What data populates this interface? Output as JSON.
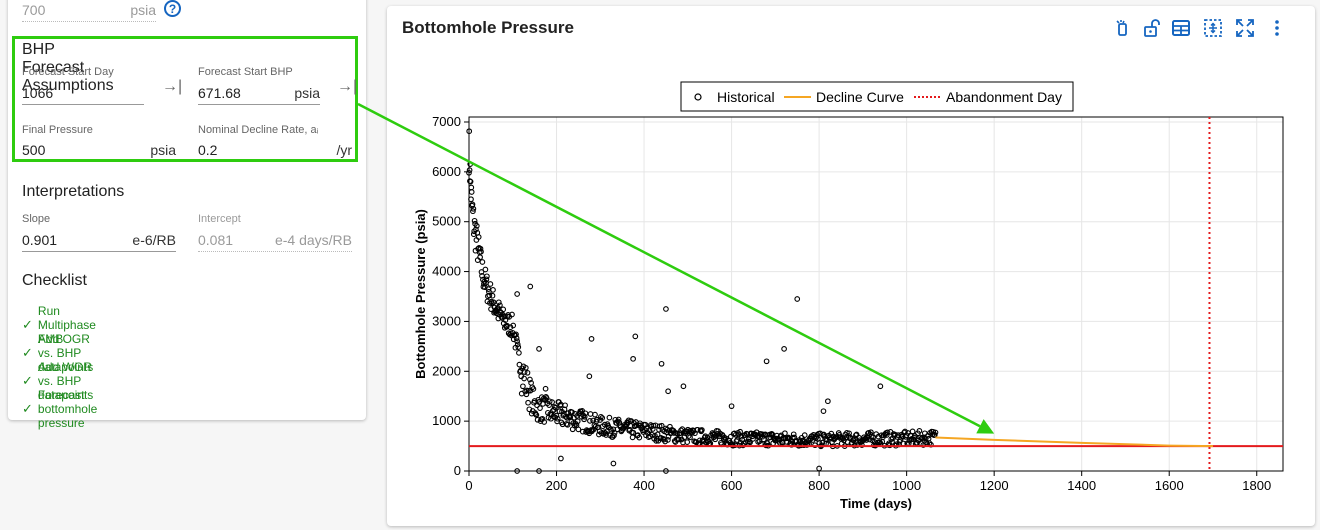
{
  "top_field": {
    "value": "700",
    "unit": "psia"
  },
  "assumptions": {
    "title": "BHP Forecast Assumptions",
    "start_day": {
      "label": "Forecast Start Day",
      "value": "1066"
    },
    "start_bhp": {
      "label": "Forecast Start BHP",
      "value": "671.68",
      "unit": "psia"
    },
    "final_pressure": {
      "label": "Final Pressure",
      "value": "500",
      "unit": "psia"
    },
    "decline_rate": {
      "label": "Nominal Decline Rate, aᵢ",
      "value": "0.2",
      "unit": "/yr"
    }
  },
  "interpretations": {
    "title": "Interpretations",
    "slope": {
      "label": "Slope",
      "value": "0.901",
      "unit": "e-6/RB"
    },
    "intercept": {
      "label": "Intercept",
      "value": "0.081",
      "unit": "e-4 days/RB"
    }
  },
  "checklist": {
    "title": "Checklist",
    "items": [
      "Run Multiphase FMB",
      "Add OGR vs. BHP datapoints",
      "Add WGR vs. BHP datapoints",
      "Forecast bottomhole pressure"
    ]
  },
  "chart_title": "Bottomhole Pressure",
  "toolbar_icons": [
    "lasso-icon",
    "unlock-icon",
    "table-icon",
    "zoom-box-icon",
    "fullscreen-icon",
    "more-vert-icon"
  ],
  "colors": {
    "highlight": "#2ecc0f",
    "decline": "#f5a623",
    "final": "#e41a1c",
    "abandon": "#e41a1c",
    "check": "#1f8a1f",
    "icon": "#1565c0"
  },
  "chart_data": {
    "type": "scatter",
    "xlabel": "Time (days)",
    "ylabel": "Bottomhole Pressure (psia)",
    "xlim": [
      0,
      1860
    ],
    "ylim": [
      0,
      7100
    ],
    "xticks": [
      0,
      200,
      400,
      600,
      800,
      1000,
      1200,
      1400,
      1600,
      1800
    ],
    "yticks": [
      0,
      1000,
      2000,
      3000,
      4000,
      5000,
      6000,
      7000
    ],
    "grid": true,
    "legend_position": "top",
    "legend": [
      "Historical",
      "Decline Curve",
      "Abandonment Day"
    ],
    "historical_trend": {
      "description_points": [
        [
          0,
          6500
        ],
        [
          5,
          5500
        ],
        [
          10,
          5000
        ],
        [
          20,
          4500
        ],
        [
          30,
          4000
        ],
        [
          40,
          3700
        ],
        [
          60,
          3300
        ],
        [
          80,
          3000
        ],
        [
          100,
          2900
        ],
        [
          120,
          2000
        ],
        [
          150,
          1300
        ],
        [
          200,
          1150
        ],
        [
          300,
          900
        ],
        [
          400,
          800
        ],
        [
          500,
          700
        ],
        [
          600,
          650
        ],
        [
          700,
          640
        ],
        [
          800,
          620
        ],
        [
          900,
          640
        ],
        [
          1000,
          650
        ],
        [
          1066,
          672
        ]
      ],
      "outliers": [
        [
          140,
          3700
        ],
        [
          110,
          3550
        ],
        [
          160,
          2450
        ],
        [
          175,
          1650
        ],
        [
          210,
          250
        ],
        [
          280,
          2650
        ],
        [
          275,
          1900
        ],
        [
          330,
          150
        ],
        [
          375,
          2250
        ],
        [
          380,
          2700
        ],
        [
          440,
          2150
        ],
        [
          450,
          3250
        ],
        [
          455,
          1600
        ],
        [
          490,
          1700
        ],
        [
          600,
          1300
        ],
        [
          680,
          2200
        ],
        [
          720,
          2450
        ],
        [
          750,
          3450
        ],
        [
          800,
          50
        ],
        [
          810,
          1200
        ],
        [
          820,
          1400
        ],
        [
          940,
          1700
        ],
        [
          110,
          0
        ],
        [
          160,
          0
        ],
        [
          450,
          0
        ]
      ],
      "count": 700
    },
    "decline_curve": {
      "x": [
        1066,
        1200,
        1400,
        1600,
        1700
      ],
      "y": [
        672,
        625,
        565,
        510,
        500
      ]
    },
    "final_pressure_line": 500,
    "abandonment_day": 1692
  }
}
